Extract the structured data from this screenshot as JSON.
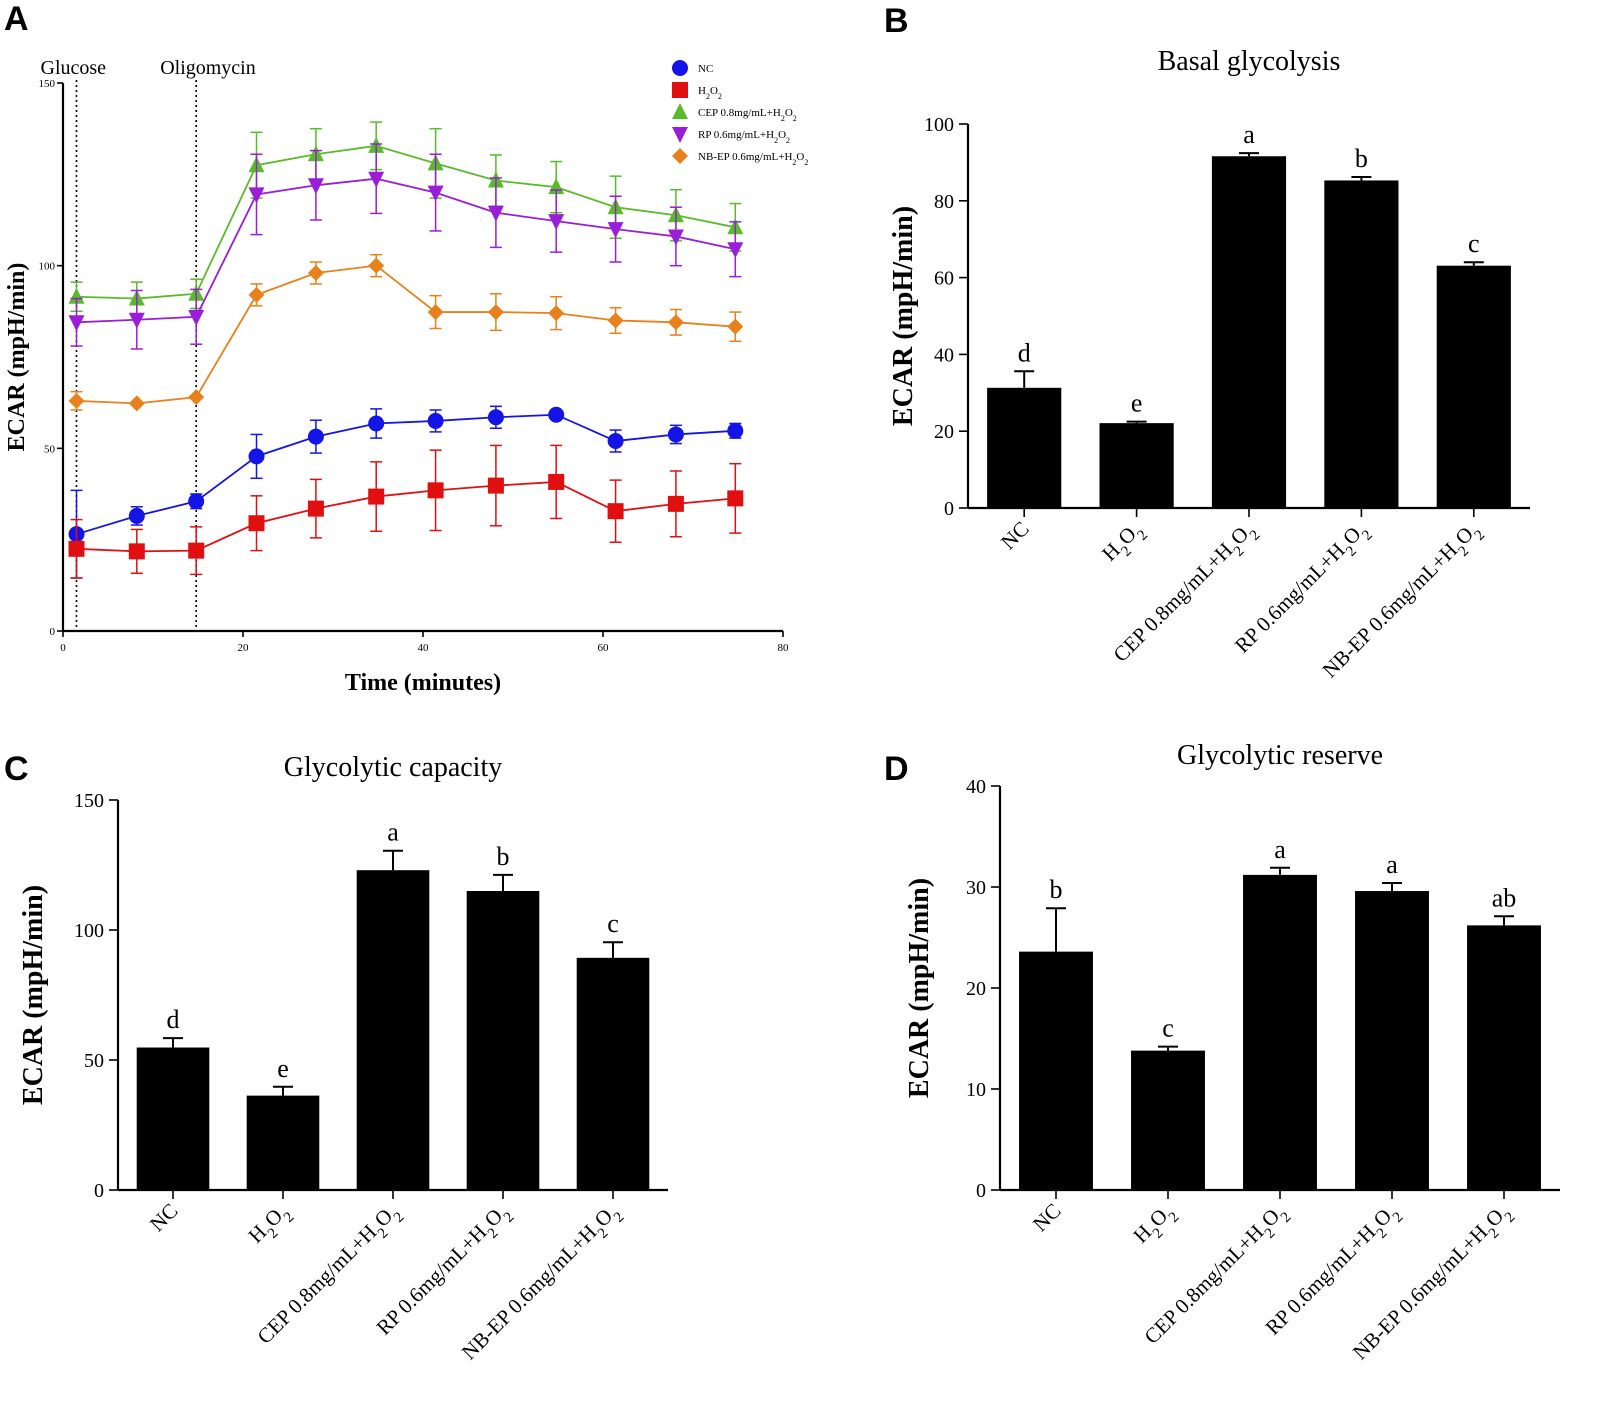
{
  "figure": {
    "legend_items": [
      "NC",
      "H₂O₂",
      "CEP 0.8mg/mL+H₂O₂",
      "RP 0.6mg/mL+H₂O₂",
      "NB-EP 0.6mg/mL+H₂O₂"
    ]
  },
  "chart_data": [
    {
      "panel": "A",
      "type": "line",
      "title": "",
      "xlabel": "Time (minutes)",
      "ylabel": "ECAR (mpH/min)",
      "xlim": [
        0,
        80
      ],
      "ylim": [
        0,
        150
      ],
      "xticks": [
        0,
        20,
        40,
        60,
        80
      ],
      "yticks": [
        0,
        50,
        100,
        150
      ],
      "injections": [
        {
          "label": "Glucose",
          "x": 1.5
        },
        {
          "label": "Oligomycin",
          "x": 14.8
        }
      ],
      "x": [
        1.5,
        8.2,
        14.8,
        21.5,
        28.1,
        34.8,
        41.4,
        48.1,
        54.8,
        61.4,
        68.1,
        74.7
      ],
      "series": [
        {
          "name": "NC",
          "color": "#1414e6",
          "marker": "circle",
          "values": [
            26.5,
            31.5,
            35.5,
            47.8,
            53.2,
            56.8,
            57.5,
            58.5,
            59.2,
            52.0,
            53.8,
            54.8
          ],
          "errors": [
            12,
            2.5,
            2,
            6,
            4.5,
            4,
            3,
            3,
            0,
            3,
            2.5,
            2
          ]
        },
        {
          "name": "H₂O₂",
          "color": "#e01010",
          "marker": "square",
          "values": [
            22.5,
            21.8,
            22.0,
            29.5,
            33.5,
            36.8,
            38.5,
            39.8,
            40.8,
            32.8,
            34.8,
            36.3
          ],
          "errors": [
            8,
            6,
            6.5,
            7.5,
            8,
            9.5,
            11,
            11,
            10,
            8.5,
            9,
            9.5
          ]
        },
        {
          "name": "CEP 0.8mg/mL+H₂O₂",
          "color": "#5abb2a",
          "marker": "triangle-up",
          "values": [
            91.5,
            91.0,
            92.3,
            127.5,
            130.5,
            132.8,
            128.0,
            123.3,
            121.5,
            116.0,
            113.8,
            110.5
          ],
          "errors": [
            4,
            4.5,
            4,
            9,
            7,
            6.5,
            9.5,
            7,
            7,
            8.5,
            7,
            6.5
          ]
        },
        {
          "name": "RP 0.6mg/mL+H₂O₂",
          "color": "#9a1ed8",
          "marker": "triangle-down",
          "values": [
            84.5,
            85.2,
            86.0,
            119.5,
            122.0,
            123.8,
            120.0,
            114.5,
            112.2,
            110.0,
            108.0,
            104.5
          ],
          "errors": [
            6.5,
            8,
            7.5,
            11,
            9.5,
            9.5,
            10.5,
            9.5,
            8.5,
            9,
            8,
            7.5
          ]
        },
        {
          "name": "NB-EP 0.6mg/mL+H₂O₂",
          "color": "#e8811c",
          "marker": "diamond",
          "values": [
            63.0,
            62.3,
            64.0,
            92.0,
            98.0,
            100.0,
            87.3,
            87.3,
            87.0,
            85.0,
            84.5,
            83.3
          ],
          "errors": [
            2.5,
            0,
            0,
            3,
            3,
            3,
            4.5,
            5,
            4.5,
            3.5,
            3.5,
            4
          ]
        }
      ]
    },
    {
      "panel": "B",
      "type": "bar",
      "title": "Basal glycolysis",
      "ylabel": "ECAR (mpH/min)",
      "ylim": [
        0,
        100
      ],
      "yticks": [
        0,
        20,
        40,
        60,
        80,
        100
      ],
      "categories": [
        "NC",
        "H₂O₂",
        "CEP 0.8mg/mL+H₂O₂",
        "RP 0.6mg/mL+H₂O₂",
        "NB-EP 0.6mg/mL+H₂O₂"
      ],
      "values": [
        31.3,
        22.1,
        91.6,
        85.3,
        63.1
      ],
      "errors": [
        4.3,
        0.4,
        0.8,
        0.9,
        0.9
      ],
      "letters": [
        "d",
        "e",
        "a",
        "b",
        "c"
      ]
    },
    {
      "panel": "C",
      "type": "bar",
      "title": "Glycolytic capacity",
      "ylabel": "ECAR (mpH/min)",
      "ylim": [
        0,
        150
      ],
      "yticks": [
        0,
        50,
        100,
        150
      ],
      "categories": [
        "NC",
        "H₂O₂",
        "CEP 0.8mg/mL+H₂O₂",
        "RP 0.6mg/mL+H₂O₂",
        "NB-EP 0.6mg/mL+H₂O₂"
      ],
      "values": [
        54.8,
        36.3,
        123.0,
        115.0,
        89.3
      ],
      "errors": [
        3.6,
        3.4,
        7.5,
        6.2,
        6.0
      ],
      "letters": [
        "d",
        "e",
        "a",
        "b",
        "c"
      ]
    },
    {
      "panel": "D",
      "type": "bar",
      "title": "Glycolytic reserve",
      "ylabel": "ECAR (mpH/min)",
      "ylim": [
        0,
        40
      ],
      "yticks": [
        0,
        10,
        20,
        30,
        40
      ],
      "categories": [
        "NC",
        "H₂O₂",
        "CEP 0.8mg/mL+H₂O₂",
        "RP 0.6mg/mL+H₂O₂",
        "NB-EP 0.6mg/mL+H₂O₂"
      ],
      "values": [
        23.6,
        13.8,
        31.2,
        29.6,
        26.2
      ],
      "errors": [
        4.3,
        0.4,
        0.7,
        0.8,
        0.9
      ],
      "letters": [
        "b",
        "c",
        "a",
        "a",
        "ab"
      ]
    }
  ]
}
